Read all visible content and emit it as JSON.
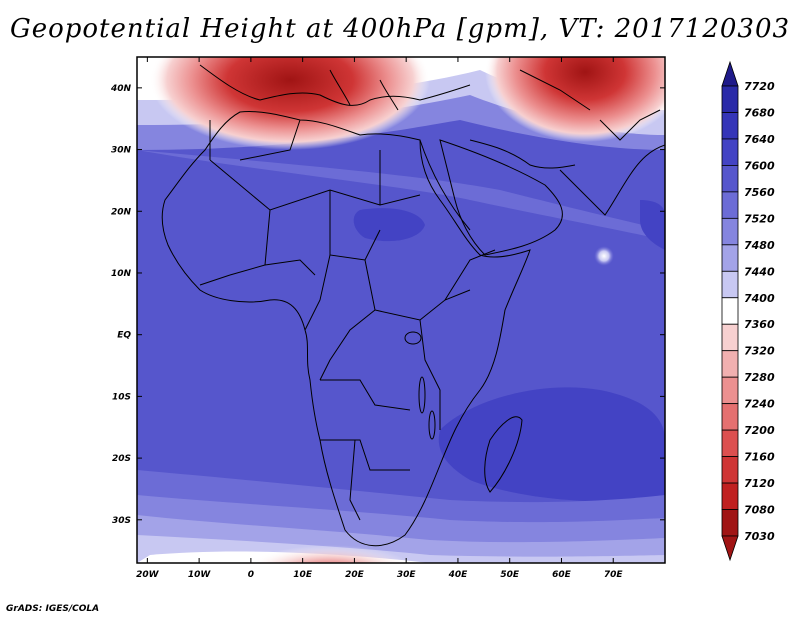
{
  "title": "Geopotential Height at 400hPa [gpm], VT: 2017120303",
  "credit": "GrADS: IGES/COLA",
  "map": {
    "lon_range": [
      -22,
      80
    ],
    "lat_range": [
      -37,
      45
    ],
    "x_ticks": [
      "20W",
      "10W",
      "0",
      "10E",
      "20E",
      "30E",
      "40E",
      "50E",
      "60E",
      "70E"
    ],
    "x_tick_values": [
      -20,
      -10,
      0,
      10,
      20,
      30,
      40,
      50,
      60,
      70
    ],
    "y_ticks": [
      "40N",
      "30N",
      "20N",
      "10N",
      "EQ",
      "10S",
      "20S",
      "30S"
    ],
    "y_tick_values": [
      40,
      30,
      20,
      10,
      0,
      -10,
      -20,
      -30
    ]
  },
  "colorbar": {
    "levels": [
      "7720",
      "7680",
      "7640",
      "7600",
      "7560",
      "7520",
      "7480",
      "7440",
      "7400",
      "7360",
      "7320",
      "7280",
      "7240",
      "7200",
      "7160",
      "7120",
      "7080",
      "7030"
    ],
    "colors": [
      "#1f1a8a",
      "#2a2aa8",
      "#3535b8",
      "#4343c4",
      "#5656cc",
      "#6c6cd6",
      "#8585df",
      "#a3a3e8",
      "#c8c8f2",
      "#ffffff",
      "#f7d0d0",
      "#f1b0b0",
      "#ec9090",
      "#e57070",
      "#dc5050",
      "#cf3535",
      "#c02020",
      "#a01414"
    ]
  }
}
